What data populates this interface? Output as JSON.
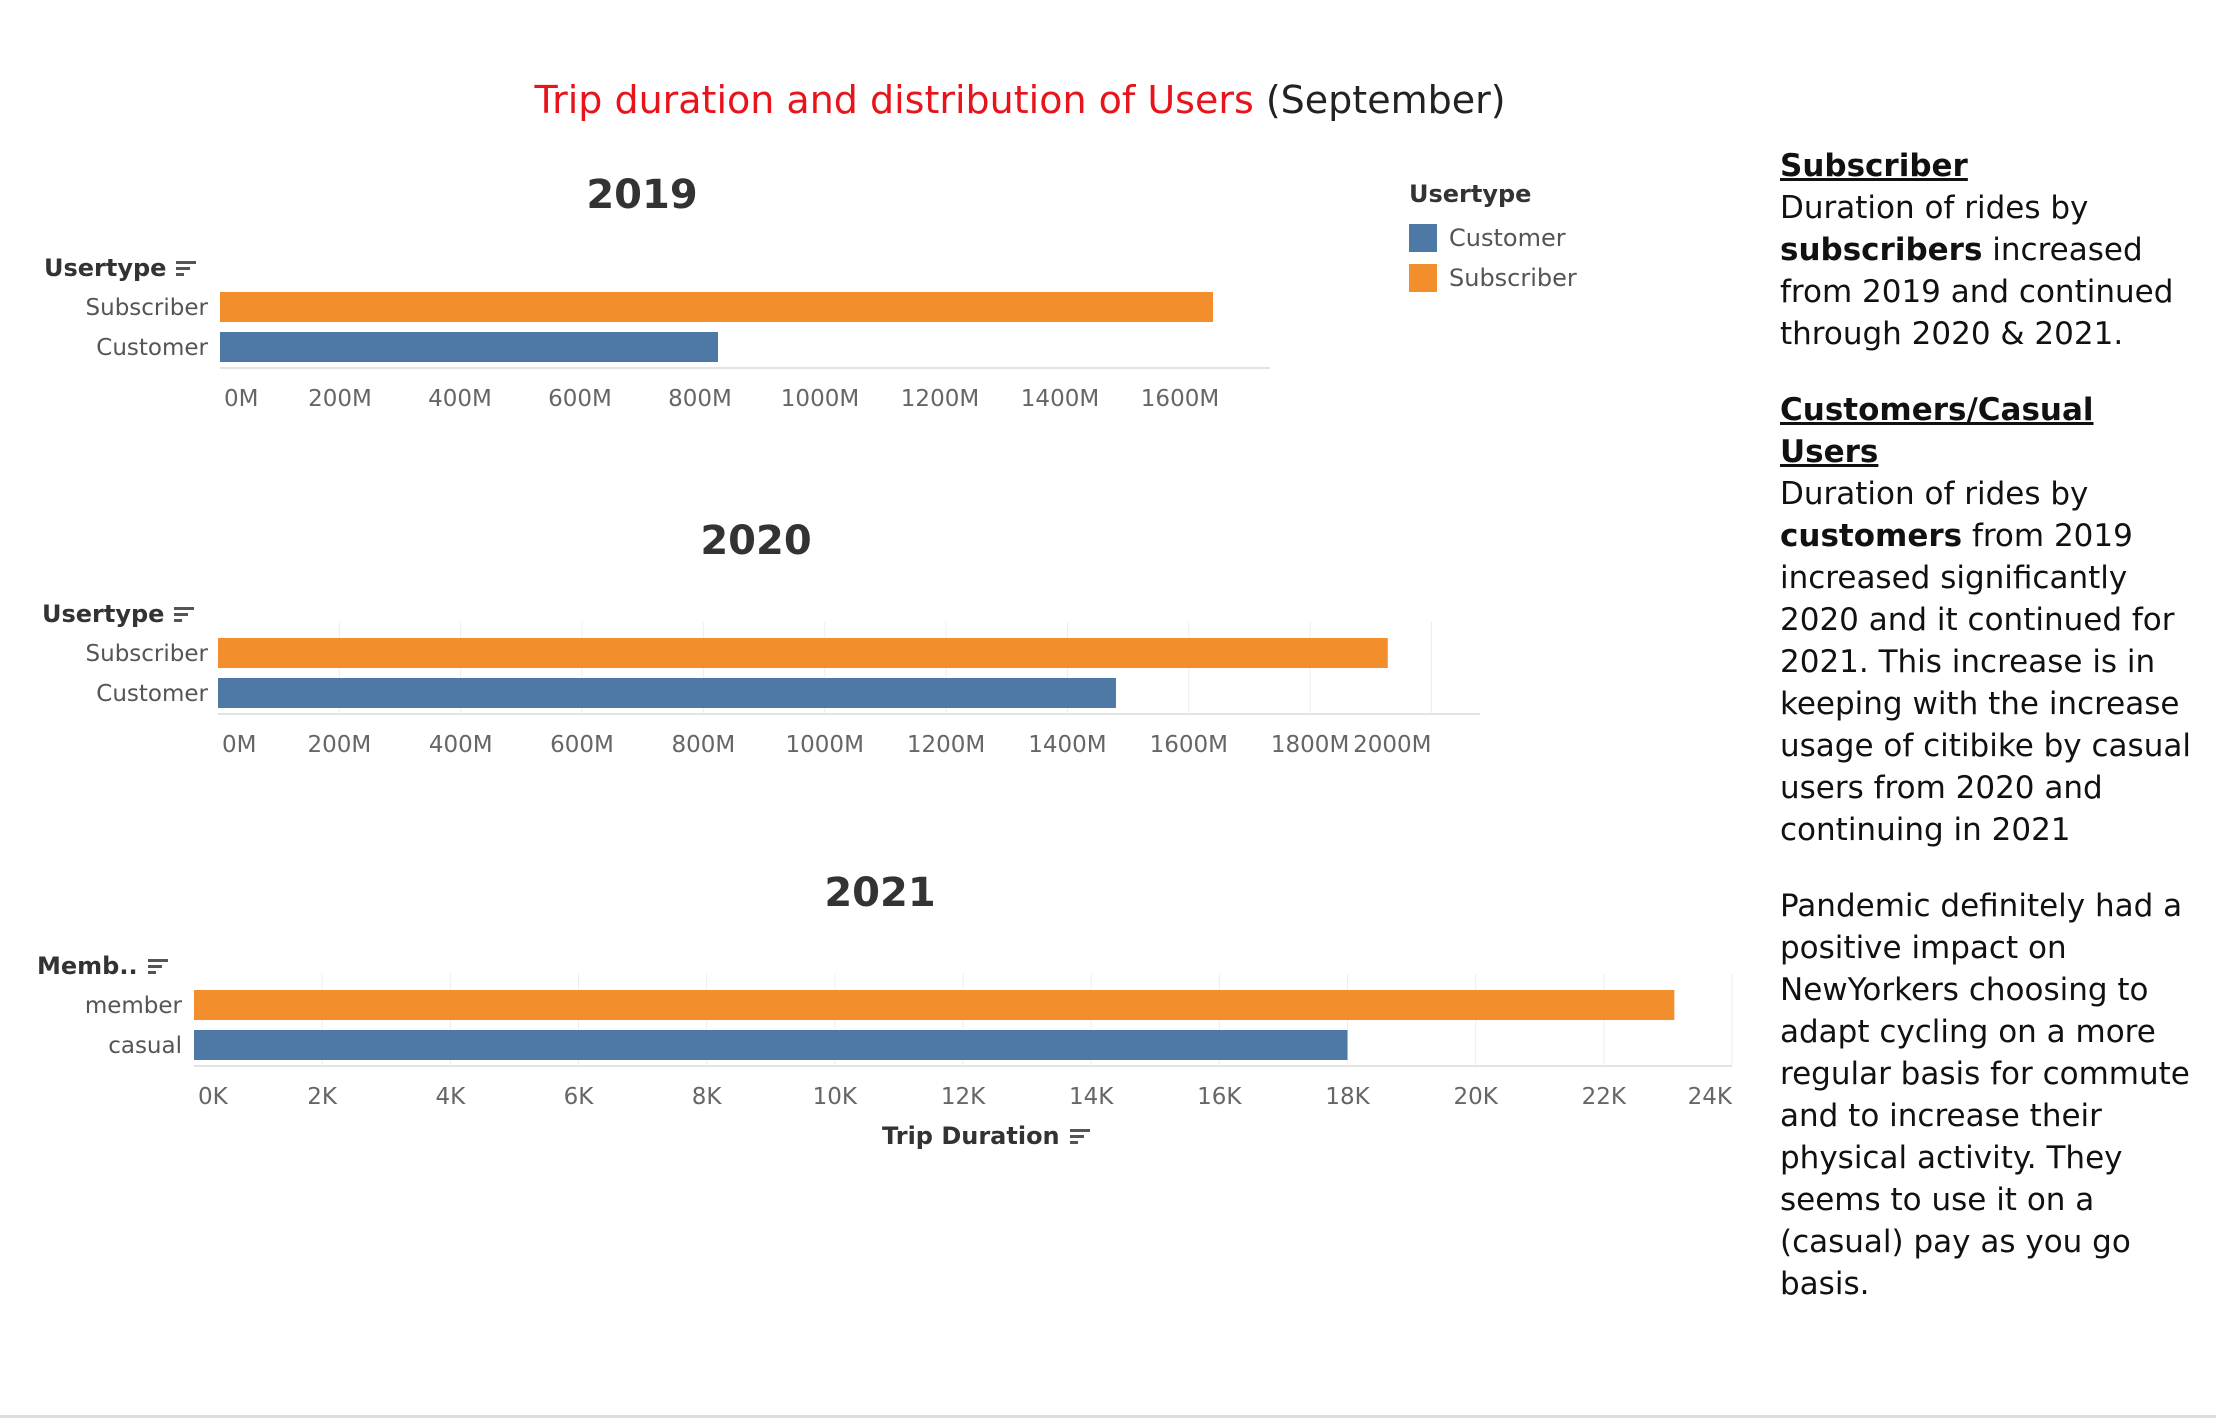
{
  "dashboard": {
    "title_main": "Trip duration and distribution of Users",
    "title_suffix": "(September)",
    "title_color": "#e8141c"
  },
  "colors": {
    "customer": "#4e79a7",
    "subscriber": "#f28e2b"
  },
  "legend": {
    "title": "Usertype",
    "items": [
      {
        "label": "Customer",
        "color": "#4e79a7"
      },
      {
        "label": "Subscriber",
        "color": "#f28e2b"
      }
    ]
  },
  "chart_data": [
    {
      "type": "bar",
      "orientation": "horizontal",
      "title": "2019",
      "dimension_label": "Usertype",
      "categories": [
        "Subscriber",
        "Customer"
      ],
      "values": [
        1655000000,
        830000000
      ],
      "colors": [
        "#f28e2b",
        "#4e79a7"
      ],
      "xlim": [
        0,
        1750000000
      ],
      "ticks": [
        0,
        200000000,
        400000000,
        600000000,
        800000000,
        1000000000,
        1200000000,
        1400000000,
        1600000000
      ],
      "tick_labels": [
        "0M",
        "200M",
        "400M",
        "600M",
        "800M",
        "1000M",
        "1200M",
        "1400M",
        "1600M"
      ],
      "grid": false
    },
    {
      "type": "bar",
      "orientation": "horizontal",
      "title": "2020",
      "dimension_label": "Usertype",
      "categories": [
        "Subscriber",
        "Customer"
      ],
      "values": [
        1928000000,
        1480000000
      ],
      "colors": [
        "#f28e2b",
        "#4e79a7"
      ],
      "xlim": [
        0,
        2080000000
      ],
      "ticks": [
        0,
        200000000,
        400000000,
        600000000,
        800000000,
        1000000000,
        1200000000,
        1400000000,
        1600000000,
        1800000000,
        2000000000
      ],
      "tick_labels": [
        "0M",
        "200M",
        "400M",
        "600M",
        "800M",
        "1000M",
        "1200M",
        "1400M",
        "1600M",
        "1800M",
        "2000M"
      ],
      "grid": true
    },
    {
      "type": "bar",
      "orientation": "horizontal",
      "title": "2021",
      "dimension_label": "Memb..",
      "xlabel": "Trip Duration",
      "categories": [
        "member",
        "casual"
      ],
      "values": [
        23100,
        18000
      ],
      "colors": [
        "#f28e2b",
        "#4e79a7"
      ],
      "xlim": [
        0,
        24000
      ],
      "ticks": [
        0,
        2000,
        4000,
        6000,
        8000,
        10000,
        12000,
        14000,
        16000,
        18000,
        20000,
        22000,
        24000
      ],
      "tick_labels": [
        "0K",
        "2K",
        "4K",
        "6K",
        "8K",
        "10K",
        "12K",
        "14K",
        "16K",
        "18K",
        "20K",
        "22K",
        "24K"
      ],
      "grid": true
    }
  ],
  "notes": {
    "subscriber_heading": "Subscriber",
    "subscriber_text_1": "Duration of rides by",
    "subscriber_bold": "subscribers",
    "subscriber_text_2": "increased from 2019 and continued through 2020 & 2021.",
    "customer_heading": "Customers/Casual Users",
    "customer_text_1": "Duration of rides by",
    "customer_bold": "customers",
    "customer_text_2": "from 2019 increased significantly 2020 and it continued for 2021. This increase is in keeping with the increase usage of citibike by casual users from 2020 and continuing in 2021",
    "pandemic_text": "Pandemic definitely had a positive impact on NewYorkers choosing to adapt cycling on a more regular basis for commute and to increase their physical activity. They seems to use it on a (casual) pay as you go basis."
  }
}
